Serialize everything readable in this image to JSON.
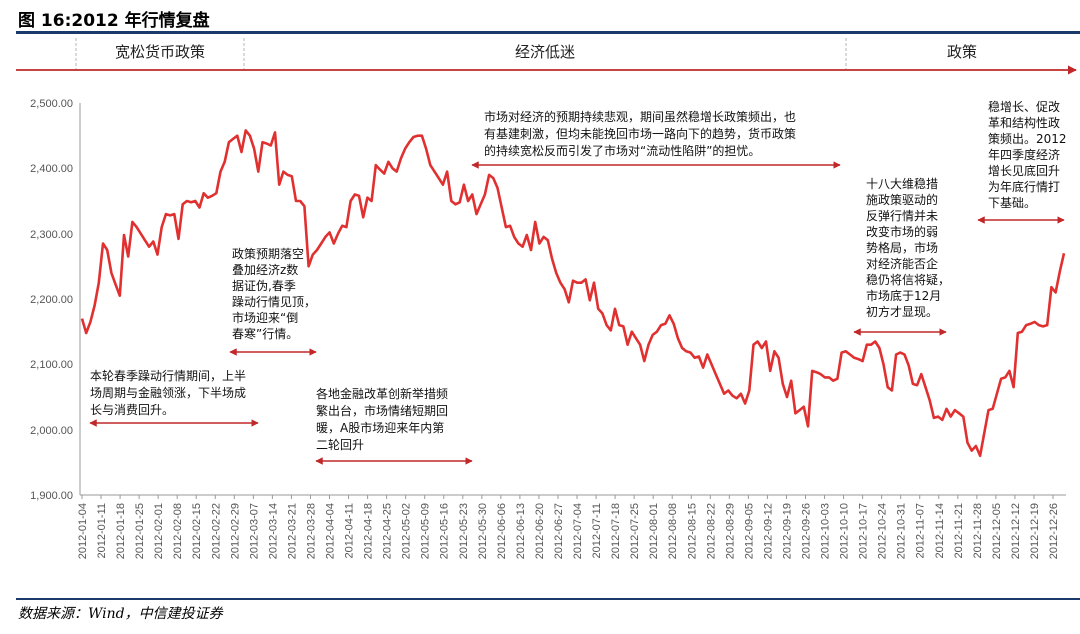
{
  "title": "图 16:2012 年行情复盘",
  "source": "数据来源：Wind，中信建投证券",
  "colors": {
    "line": "#e03030",
    "arrow": "#c0282a",
    "rule": "#1a3a6c",
    "axis": "#999999"
  },
  "phases": [
    {
      "label": "宽松货币政策"
    },
    {
      "label": "经济低迷"
    },
    {
      "label": "政策"
    }
  ],
  "annotations": [
    {
      "lines": [
        "本轮春季躁动行情期间，上半",
        "场周期与金融领涨，下半场成",
        "长与消费回升。"
      ]
    },
    {
      "lines": [
        "政策预期落空",
        "叠加经济z数",
        "据证伪,春季",
        "躁动行情见顶，",
        "市场迎来“倒",
        "春寒”行情。"
      ]
    },
    {
      "lines": [
        "各地金融改革创新举措频",
        "繁出台，市场情绪短期回",
        "暖，A股市场迎来年内第",
        "二轮回升"
      ]
    },
    {
      "lines": [
        "市场对经济的预期持续悲观，期间虽然稳增长政策频出，也",
        "有基建刺激，但均未能挽回市场一路向下的趋势，货币政策",
        "的持续宽松反而引发了市场对“流动性陷阱”的担忧。"
      ]
    },
    {
      "lines": [
        "十八大维稳措",
        "施政策驱动的",
        "反弹行情并未",
        "改变市场的弱",
        "势格局，市场",
        "对经济能否企",
        "稳仍将信将疑，",
        "市场底于12月",
        "初方才显现。"
      ]
    },
    {
      "lines": [
        "稳增长、促改",
        "革和结构性政",
        "策频出。2012",
        "年四季度经济",
        "增长见底回升",
        "为年底行情打",
        "下基础。"
      ]
    }
  ],
  "chart_data": {
    "type": "line",
    "ylim": [
      1900,
      2500
    ],
    "y_ticks": [
      "2,500.00",
      "2,400.00",
      "2,300.00",
      "2,200.00",
      "2,100.00",
      "2,000.00",
      "1,900.00"
    ],
    "x_ticks": [
      "2012-01-04",
      "2012-01-11",
      "2012-01-18",
      "2012-01-25",
      "2012-02-01",
      "2012-02-08",
      "2012-02-15",
      "2012-02-22",
      "2012-02-29",
      "2012-03-07",
      "2012-03-14",
      "2012-03-21",
      "2012-03-28",
      "2012-04-04",
      "2012-04-11",
      "2012-04-18",
      "2012-04-25",
      "2012-05-02",
      "2012-05-09",
      "2012-05-16",
      "2012-05-23",
      "2012-05-30",
      "2012-06-06",
      "2012-06-13",
      "2012-06-20",
      "2012-06-27",
      "2012-07-04",
      "2012-07-11",
      "2012-07-18",
      "2012-07-25",
      "2012-08-01",
      "2012-08-08",
      "2012-08-15",
      "2012-08-22",
      "2012-08-29",
      "2012-09-05",
      "2012-09-12",
      "2012-09-19",
      "2012-09-26",
      "2012-10-03",
      "2012-10-10",
      "2012-10-17",
      "2012-10-24",
      "2012-10-31",
      "2012-11-07",
      "2012-11-14",
      "2012-11-21",
      "2012-11-28",
      "2012-12-05",
      "2012-12-12",
      "2012-12-19",
      "2012-12-26"
    ],
    "values": [
      2170,
      2148,
      2165,
      2190,
      2225,
      2285,
      2275,
      2240,
      2222,
      2205,
      2298,
      2265,
      2318,
      2310,
      2300,
      2290,
      2280,
      2288,
      2268,
      2310,
      2330,
      2328,
      2330,
      2292,
      2345,
      2350,
      2348,
      2350,
      2340,
      2362,
      2355,
      2358,
      2362,
      2395,
      2410,
      2440,
      2445,
      2450,
      2425,
      2458,
      2450,
      2430,
      2395,
      2440,
      2438,
      2435,
      2455,
      2375,
      2395,
      2390,
      2388,
      2350,
      2350,
      2342,
      2250,
      2268,
      2275,
      2285,
      2295,
      2302,
      2285,
      2300,
      2312,
      2310,
      2350,
      2360,
      2358,
      2325,
      2355,
      2350,
      2405,
      2398,
      2392,
      2410,
      2400,
      2395,
      2415,
      2430,
      2440,
      2448,
      2450,
      2450,
      2430,
      2405,
      2395,
      2385,
      2375,
      2395,
      2350,
      2345,
      2348,
      2375,
      2350,
      2360,
      2330,
      2345,
      2360,
      2390,
      2385,
      2370,
      2340,
      2310,
      2312,
      2295,
      2285,
      2280,
      2298,
      2275,
      2318,
      2285,
      2295,
      2290,
      2262,
      2240,
      2225,
      2215,
      2195,
      2228,
      2225,
      2225,
      2230,
      2198,
      2225,
      2185,
      2178,
      2160,
      2152,
      2185,
      2160,
      2158,
      2130,
      2150,
      2140,
      2130,
      2105,
      2130,
      2145,
      2150,
      2160,
      2162,
      2175,
      2162,
      2140,
      2125,
      2120,
      2118,
      2110,
      2112,
      2095,
      2115,
      2100,
      2085,
      2070,
      2055,
      2060,
      2052,
      2048,
      2055,
      2040,
      2060,
      2130,
      2135,
      2125,
      2135,
      2090,
      2120,
      2110,
      2070,
      2050,
      2075,
      2025,
      2030,
      2035,
      2005,
      2090,
      2088,
      2085,
      2080,
      2080,
      2075,
      2078,
      2118,
      2120,
      2115,
      2110,
      2108,
      2105,
      2130,
      2130,
      2135,
      2125,
      2100,
      2065,
      2060,
      2115,
      2118,
      2115,
      2098,
      2070,
      2068,
      2085,
      2065,
      2045,
      2018,
      2020,
      2015,
      2032,
      2020,
      2030,
      2025,
      2020,
      1980,
      1968,
      1975,
      1960,
      1995,
      2030,
      2032,
      2055,
      2078,
      2080,
      2090,
      2065,
      2148,
      2150,
      2160,
      2162,
      2165,
      2160,
      2158,
      2160,
      2218,
      2210,
      2242,
      2270
    ]
  }
}
